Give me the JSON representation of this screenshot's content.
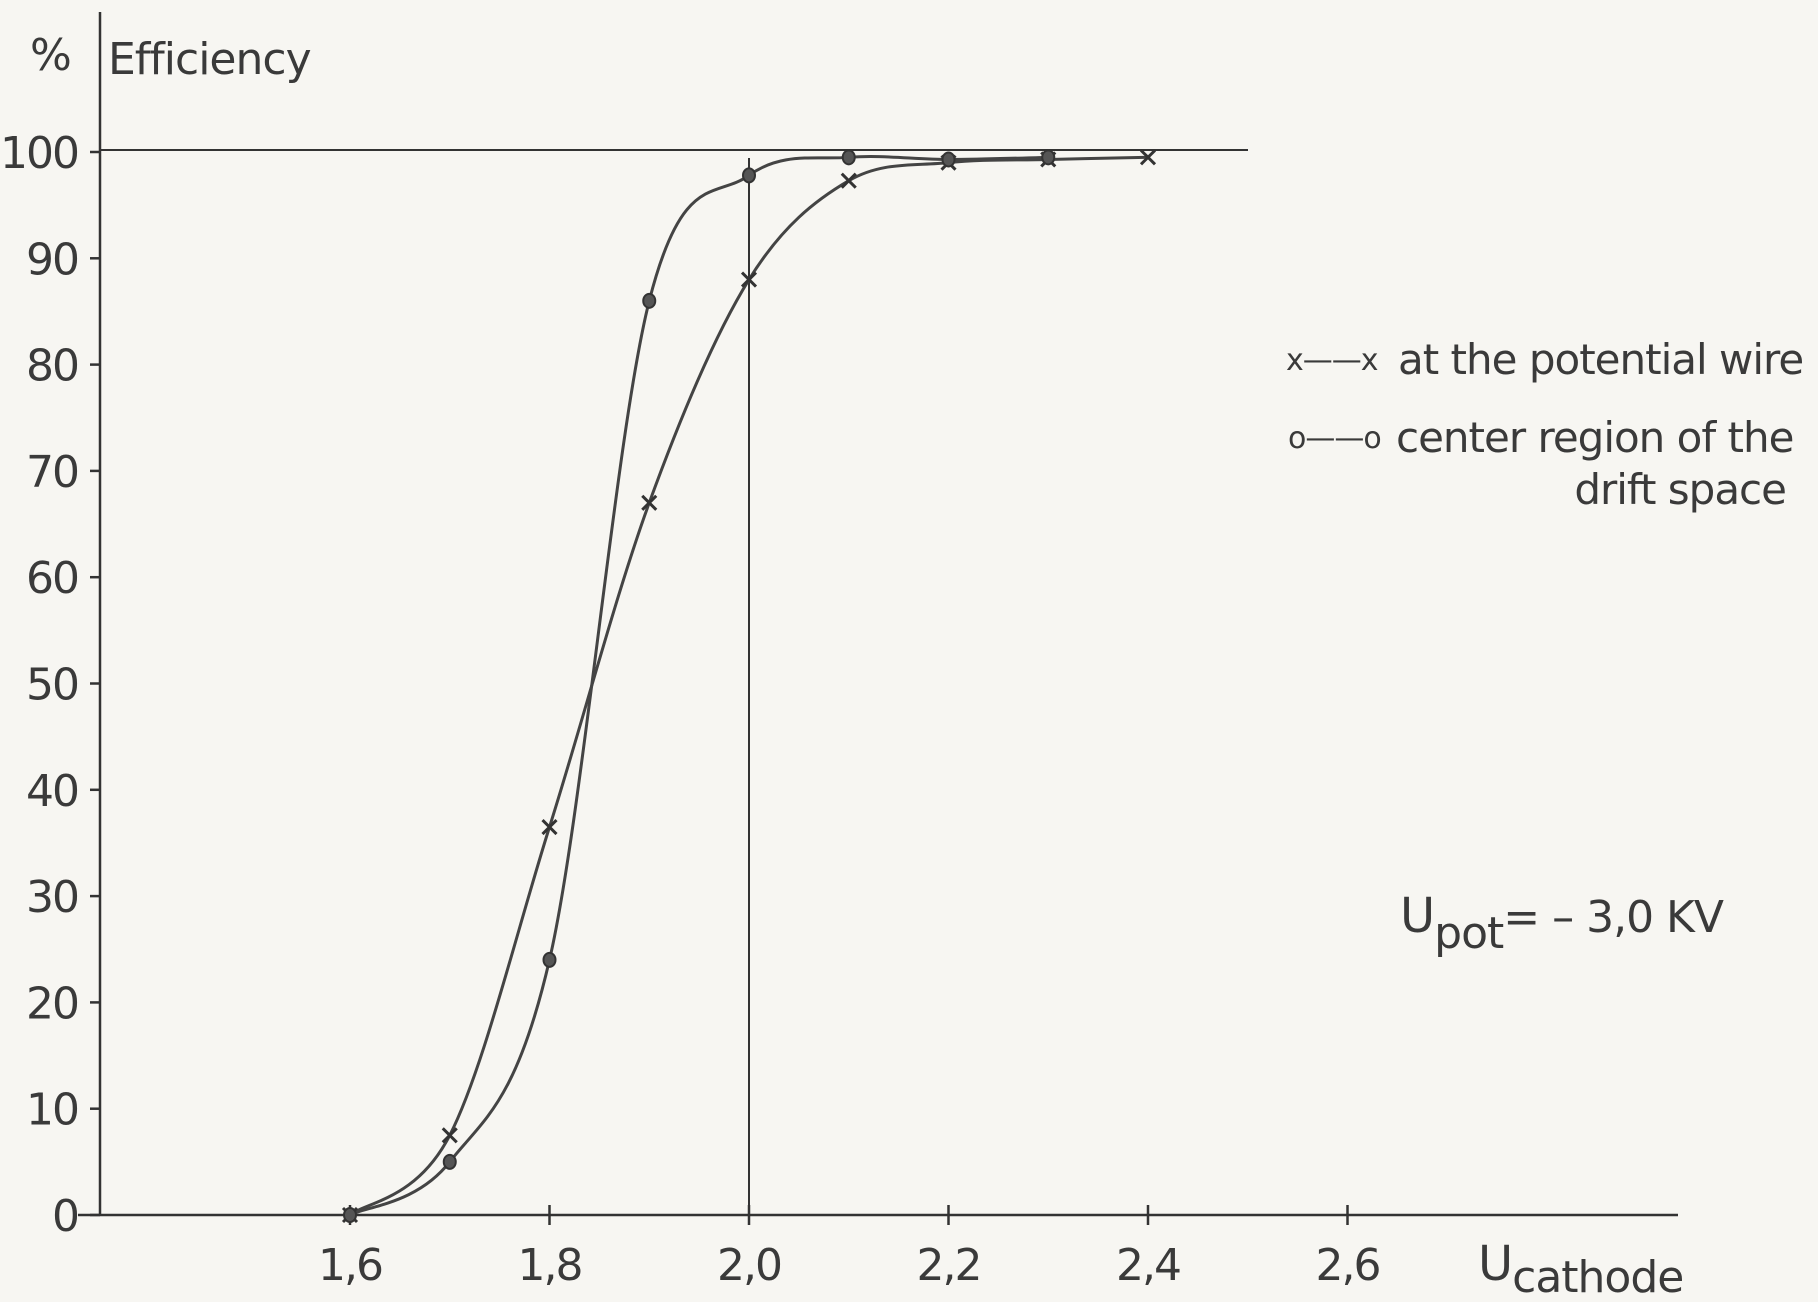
{
  "chart_data": {
    "type": "line",
    "ylabel_symbol": "%",
    "ylabel": "Efficiency",
    "xlabel_main": "U",
    "xlabel_sub": "cathode",
    "x_ticks": [
      "1,6",
      "1,8",
      "2,0",
      "2,2",
      "2,4",
      "2,6"
    ],
    "x_tick_values": [
      1.6,
      1.8,
      2.0,
      2.2,
      2.4,
      2.6
    ],
    "y_ticks": [
      "0",
      "10",
      "20",
      "30",
      "40",
      "50",
      "60",
      "70",
      "80",
      "90",
      "100"
    ],
    "y_tick_values": [
      0,
      10,
      20,
      30,
      40,
      50,
      60,
      70,
      80,
      90,
      100
    ],
    "xlim": [
      1.34,
      2.93
    ],
    "ylim": [
      0,
      100
    ],
    "reference_lines": {
      "y": 100,
      "x": 2.0
    },
    "series": [
      {
        "name": "at the potential wire",
        "marker": "x",
        "x": [
          1.6,
          1.7,
          1.8,
          1.9,
          2.0,
          2.1,
          2.2,
          2.3,
          2.4
        ],
        "y": [
          0,
          7.5,
          36.5,
          67,
          88,
          97.3,
          99,
          99.3,
          99.5
        ]
      },
      {
        "name": "center region of the drift space",
        "marker": "o",
        "x": [
          1.6,
          1.7,
          1.8,
          1.9,
          2.0,
          2.1,
          2.2,
          2.3
        ],
        "y": [
          0,
          5,
          24,
          86,
          97.8,
          99.5,
          99.3,
          99.5
        ]
      }
    ],
    "legend": {
      "placement": "right",
      "x_sample": "x——x",
      "o_sample": "o——o",
      "x_label": "at the potential wire",
      "o_label_line1": "center region of the",
      "o_label_line2": "drift space"
    },
    "annotation": {
      "main": "U",
      "sub": "pot",
      "rest": "= – 3,0  KV"
    }
  }
}
